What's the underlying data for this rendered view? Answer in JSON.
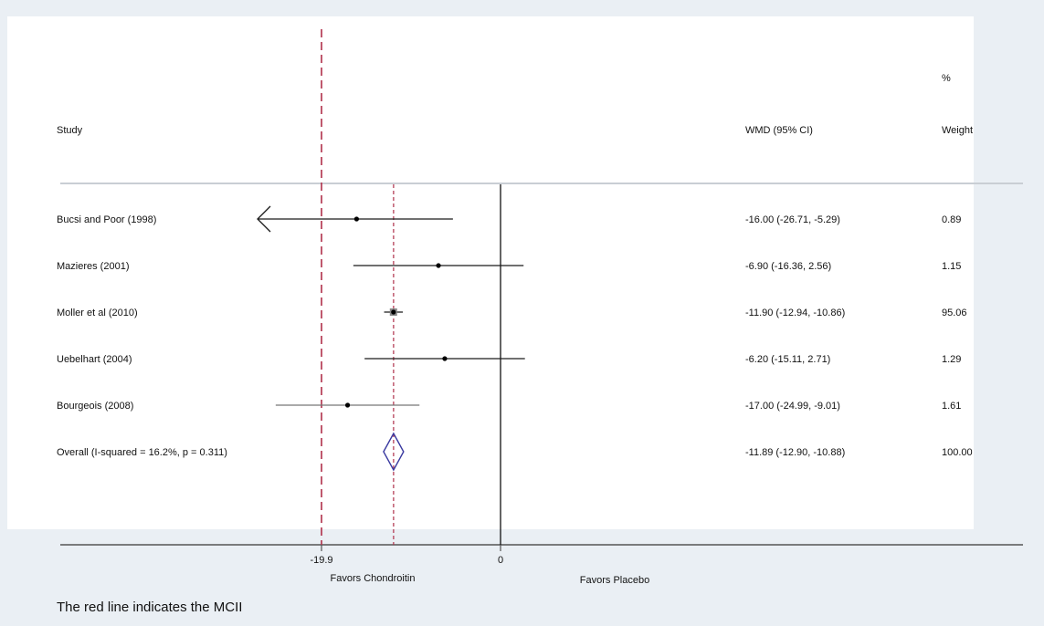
{
  "chart_data": {
    "type": "forest",
    "headers": {
      "study": "Study",
      "effect": "WMD (95% CI)",
      "weight_top": "%",
      "weight": "Weight"
    },
    "studies": [
      {
        "name": "Bucsi and Poor (1998)",
        "estimate": -16.0,
        "ci_low": -26.71,
        "ci_high": -5.29,
        "ci_text": "-16.00 (-26.71, -5.29)",
        "weight": "0.89",
        "ci_truncated_left": true
      },
      {
        "name": "Mazieres (2001)",
        "estimate": -6.9,
        "ci_low": -16.36,
        "ci_high": 2.56,
        "ci_text": "-6.90 (-16.36, 2.56)",
        "weight": "1.15"
      },
      {
        "name": "Moller et al (2010)",
        "estimate": -11.9,
        "ci_low": -12.94,
        "ci_high": -10.86,
        "ci_text": "-11.90 (-12.94, -10.86)",
        "weight": "95.06"
      },
      {
        "name": "Uebelhart (2004)",
        "estimate": -6.2,
        "ci_low": -15.11,
        "ci_high": 2.71,
        "ci_text": "-6.20 (-15.11, 2.71)",
        "weight": "1.29"
      },
      {
        "name": "Bourgeois (2008)",
        "estimate": -17.0,
        "ci_low": -24.99,
        "ci_high": -9.01,
        "ci_text": "-17.00 (-24.99, -9.01)",
        "weight": "1.61"
      }
    ],
    "overall": {
      "name": "Overall  (I-squared = 16.2%, p = 0.311)",
      "estimate": -11.89,
      "ci_low": -12.9,
      "ci_high": -10.88,
      "ci_text": "-11.89 (-12.90, -10.88)",
      "weight": "100.00"
    },
    "x_ticks": [
      {
        "value": -19.9,
        "label": "-19.9"
      },
      {
        "value": 0,
        "label": "0"
      }
    ],
    "favors_left": "Favors Chondroitin",
    "favors_right": "Favors Placebo",
    "reference_line": 0,
    "mcid_line": -19.9,
    "caption": "The red line indicates the MCII",
    "colors": {
      "mcid": "#b0304a",
      "diamond": "#3a3aa0",
      "ci": "#1a1a1a",
      "ci_gray": "#777777",
      "panel": "#ffffff",
      "background": "#eaeff4"
    }
  }
}
